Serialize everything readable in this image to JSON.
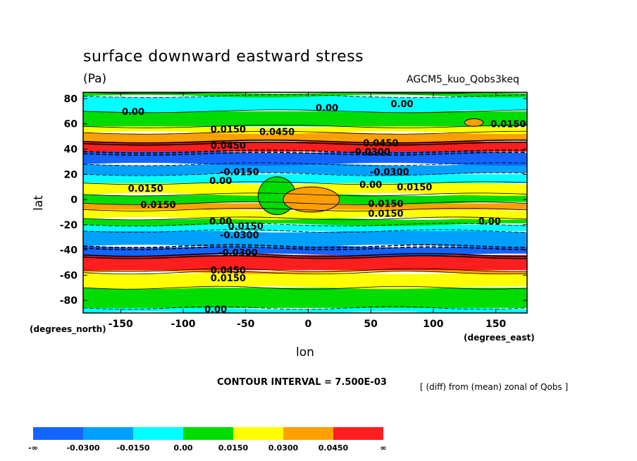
{
  "header": {
    "title": "surface downward eastward stress",
    "units": "(Pa)",
    "run": "AGCM5_kuo_Qobs3keq"
  },
  "footer": {
    "contour_interval": "CONTOUR INTERVAL = 7.500E-03",
    "note": "[ (diff) from (mean) zonal of Qobs ]"
  },
  "colorbar": {
    "labels": [
      "-∞",
      "-0.0300",
      "-0.0150",
      "0.00",
      "0.0150",
      "0.0300",
      "0.0450",
      "∞"
    ],
    "colors": [
      "#1464ff",
      "#00a0ff",
      "#00ffff",
      "#00dc00",
      "#ffff00",
      "#ffa000",
      "#ff1e1e"
    ]
  },
  "chart_data": {
    "type": "heatmap",
    "title": "surface downward eastward stress",
    "units": "(Pa)",
    "xlabel": "lon",
    "xunit": "(degrees_east)",
    "ylabel": "lat",
    "yunit": "(degrees_north)",
    "xlim": [
      -180,
      175
    ],
    "ylim": [
      -90,
      85
    ],
    "xticks": [
      -150,
      -100,
      -50,
      0,
      50,
      100,
      150
    ],
    "yticks": [
      80,
      60,
      40,
      20,
      0,
      -20,
      -40,
      -60,
      -80
    ],
    "xtick_labels": [
      "-150",
      "-100",
      "-50",
      "0",
      "50",
      "100",
      "150"
    ],
    "ytick_labels": [
      "80",
      "60",
      "40",
      "20",
      "0",
      "-20",
      "-40",
      "-60",
      "-80"
    ],
    "levels": [
      -0.03,
      -0.015,
      0,
      0.015,
      0.03,
      0.045
    ],
    "contour_interval": 0.0075,
    "bands": [
      {
        "lat_min": -90,
        "lat_max": -86,
        "level": "-0.0150"
      },
      {
        "lat_min": -86,
        "lat_max": -70,
        "level": "0.00"
      },
      {
        "lat_min": -70,
        "lat_max": -58,
        "level": "0.0150"
      },
      {
        "lat_min": -58,
        "lat_max": -56,
        "level": "0.0300"
      },
      {
        "lat_min": -56,
        "lat_max": -44,
        "level": "0.0450"
      },
      {
        "lat_min": -44,
        "lat_max": -37,
        "level": "-∞"
      },
      {
        "lat_min": -37,
        "lat_max": -25,
        "level": "-0.0300"
      },
      {
        "lat_min": -25,
        "lat_max": -20,
        "level": "-0.0150"
      },
      {
        "lat_min": -20,
        "lat_max": -15,
        "level": "0.00"
      },
      {
        "lat_min": -15,
        "lat_max": -8,
        "level": "0.0150"
      },
      {
        "lat_min": -8,
        "lat_max": -3,
        "level": "0.0300"
      },
      {
        "lat_min": -3,
        "lat_max": 4,
        "level": "0.00"
      },
      {
        "lat_min": 4,
        "lat_max": 13,
        "level": "0.0150"
      },
      {
        "lat_min": 13,
        "lat_max": 20,
        "level": "-0.0150"
      },
      {
        "lat_min": 20,
        "lat_max": 28,
        "level": "-0.0300"
      },
      {
        "lat_min": 28,
        "lat_max": 38,
        "level": "-∞"
      },
      {
        "lat_min": 38,
        "lat_max": 46,
        "level": "0.0450"
      },
      {
        "lat_min": 46,
        "lat_max": 53,
        "level": "0.0300"
      },
      {
        "lat_min": 53,
        "lat_max": 58,
        "level": "0.0150"
      },
      {
        "lat_min": 58,
        "lat_max": 70,
        "level": "0.00"
      },
      {
        "lat_min": 70,
        "lat_max": 82,
        "level": "-0.0150"
      },
      {
        "lat_min": 82,
        "lat_max": 85,
        "level": "0.00"
      }
    ],
    "features": [
      {
        "lon_min": -40,
        "lon_max": -10,
        "lat_min": -12,
        "lat_max": 18,
        "level": "0.00"
      },
      {
        "lon_min": -20,
        "lon_max": 25,
        "lat_min": -10,
        "lat_max": 10,
        "level": "0.0300"
      },
      {
        "lon_min": 125,
        "lon_max": 140,
        "lat_min": 58,
        "lat_max": 64,
        "level": "0.0300"
      }
    ],
    "contour_labels": [
      {
        "lon": -140,
        "lat": 70,
        "text": "0.00"
      },
      {
        "lon": 15,
        "lat": 73,
        "text": "0.00"
      },
      {
        "lon": 75,
        "lat": 76,
        "text": "0.00"
      },
      {
        "lon": -64,
        "lat": 56,
        "text": "0.0150"
      },
      {
        "lon": -25,
        "lat": 54,
        "text": "0.0450"
      },
      {
        "lon": 160,
        "lat": 60,
        "text": "0.0150"
      },
      {
        "lon": -64,
        "lat": 43,
        "text": "0.0450"
      },
      {
        "lon": 58,
        "lat": 45,
        "text": "0.0450"
      },
      {
        "lon": 50,
        "lat": 38,
        "text": "-0.0300"
      },
      {
        "lon": -55,
        "lat": 22,
        "text": "-0.0150"
      },
      {
        "lon": 65,
        "lat": 22,
        "text": "-0.0300"
      },
      {
        "lon": -70,
        "lat": 15,
        "text": "0.00"
      },
      {
        "lon": 50,
        "lat": 12,
        "text": "0.00"
      },
      {
        "lon": -130,
        "lat": 9,
        "text": "0.0150"
      },
      {
        "lon": 85,
        "lat": 10,
        "text": "0.0150"
      },
      {
        "lon": -120,
        "lat": -4,
        "text": "0.0150"
      },
      {
        "lon": 62,
        "lat": -3,
        "text": "0.0150"
      },
      {
        "lon": 62,
        "lat": -11,
        "text": "0.0150"
      },
      {
        "lon": -70,
        "lat": -17,
        "text": "0.00"
      },
      {
        "lon": -50,
        "lat": -21,
        "text": "0.0150"
      },
      {
        "lon": 145,
        "lat": -17,
        "text": "0.00"
      },
      {
        "lon": -55,
        "lat": -28,
        "text": "-0.0300"
      },
      {
        "lon": -56,
        "lat": -42,
        "text": "-0.0300"
      },
      {
        "lon": -64,
        "lat": -56,
        "text": "0.0450"
      },
      {
        "lon": -64,
        "lat": -62,
        "text": "0.0150"
      },
      {
        "lon": -74,
        "lat": -87,
        "text": "0.00"
      }
    ]
  }
}
